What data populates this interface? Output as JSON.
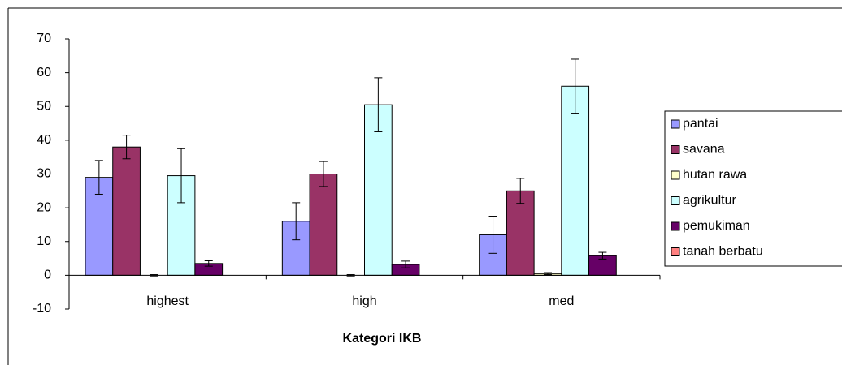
{
  "chart_data": {
    "type": "bar",
    "x_label": "Kategori IKB",
    "categories": [
      "highest",
      "high",
      "med"
    ],
    "series": [
      {
        "name": "pantai",
        "color": "#9999ff",
        "values": [
          29,
          16,
          12
        ],
        "errors": [
          5,
          5.5,
          5.5
        ]
      },
      {
        "name": "savana",
        "color": "#993366",
        "values": [
          38,
          30,
          25
        ],
        "errors": [
          3.5,
          3.7,
          3.7
        ]
      },
      {
        "name": "hutan rawa",
        "color": "#ffffcc",
        "values": [
          0,
          0,
          0.5
        ],
        "errors": [
          0.2,
          0.2,
          0.3
        ]
      },
      {
        "name": "agrikultur",
        "color": "#ccffff",
        "values": [
          29.5,
          50.5,
          56
        ],
        "errors": [
          8,
          8,
          8
        ]
      },
      {
        "name": "pemukiman",
        "color": "#660066",
        "values": [
          3.5,
          3.2,
          5.8
        ],
        "errors": [
          0.8,
          1,
          1
        ]
      },
      {
        "name": "tanah berbatu",
        "color": "#ff8080",
        "values": [
          0,
          0,
          0
        ],
        "errors": [
          0,
          0,
          0
        ]
      }
    ],
    "ylim": [
      -10,
      70
    ],
    "yticks": [
      -10,
      0,
      10,
      20,
      30,
      40,
      50,
      60,
      70
    ],
    "grid": false,
    "legend": "right"
  }
}
